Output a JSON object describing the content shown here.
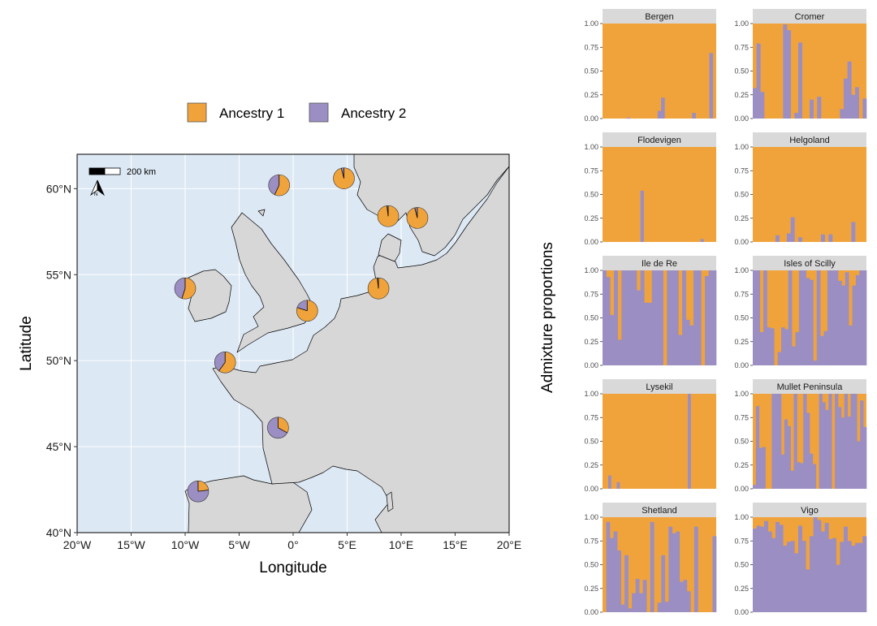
{
  "legend": {
    "items": [
      {
        "label": "Ancestry 1",
        "color": "#F0A33A"
      },
      {
        "label": "Ancestry 2",
        "color": "#9B8EC2"
      }
    ]
  },
  "map": {
    "xlabel": "Longitude",
    "ylabel": "Latitude",
    "scale_label": "200 km",
    "north_label": "N",
    "colors": {
      "sea": "#DCE8F4",
      "land": "#D7D7D7",
      "border": "#000000"
    },
    "xticks": [
      {
        "value": -20,
        "label": "20°W"
      },
      {
        "value": -15,
        "label": "15°W"
      },
      {
        "value": -10,
        "label": "10°W"
      },
      {
        "value": -5,
        "label": "5°W"
      },
      {
        "value": 0,
        "label": "0°"
      },
      {
        "value": 5,
        "label": "5°E"
      },
      {
        "value": 10,
        "label": "10°E"
      },
      {
        "value": 15,
        "label": "15°E"
      },
      {
        "value": 20,
        "label": "20°E"
      }
    ],
    "yticks": [
      {
        "value": 40,
        "label": "40°N"
      },
      {
        "value": 45,
        "label": "45°N"
      },
      {
        "value": 50,
        "label": "50°N"
      },
      {
        "value": 55,
        "label": "55°N"
      },
      {
        "value": 60,
        "label": "60°N"
      }
    ]
  },
  "chart_data": [
    {
      "type": "pie-map",
      "title": "",
      "xlabel": "Longitude",
      "ylabel": "Latitude",
      "xlim": [
        -20,
        20
      ],
      "ylim": [
        40,
        62
      ],
      "series_names": [
        "Ancestry 1",
        "Ancestry 2"
      ],
      "points": [
        {
          "site": "Bergen",
          "lon": 4.7,
          "lat": 60.6,
          "anc1": 0.96,
          "anc2": 0.04
        },
        {
          "site": "Shetland",
          "lon": -1.3,
          "lat": 60.2,
          "anc1": 0.57,
          "anc2": 0.43
        },
        {
          "site": "Flodevigen",
          "lon": 8.8,
          "lat": 58.4,
          "anc1": 0.98,
          "anc2": 0.02
        },
        {
          "site": "Lysekil",
          "lon": 11.5,
          "lat": 58.3,
          "anc1": 0.96,
          "anc2": 0.04
        },
        {
          "site": "Mullet Peninsula",
          "lon": -10.0,
          "lat": 54.2,
          "anc1": 0.55,
          "anc2": 0.45
        },
        {
          "site": "Helgoland",
          "lon": 7.9,
          "lat": 54.2,
          "anc1": 0.98,
          "anc2": 0.02
        },
        {
          "site": "Cromer",
          "lon": 1.3,
          "lat": 52.9,
          "anc1": 0.8,
          "anc2": 0.2
        },
        {
          "site": "Isles of Scilly",
          "lon": -6.3,
          "lat": 49.9,
          "anc1": 0.6,
          "anc2": 0.4
        },
        {
          "site": "Ile de Re",
          "lon": -1.4,
          "lat": 46.1,
          "anc1": 0.33,
          "anc2": 0.67
        },
        {
          "site": "Vigo",
          "lon": -8.8,
          "lat": 42.4,
          "anc1": 0.23,
          "anc2": 0.77
        }
      ]
    },
    {
      "type": "bar",
      "subtype": "stacked-faceted",
      "ylabel": "Admixture proportions",
      "ylim": [
        0,
        1
      ],
      "yticks": [
        "0.00",
        "0.25",
        "0.50",
        "0.75",
        "1.00"
      ],
      "series_names": [
        "Ancestry 2",
        "Ancestry 1"
      ],
      "note": "values are per-individual Ancestry 2 proportions; Ancestry 1 = 1 - value",
      "facets": [
        {
          "name": "Bergen",
          "values": [
            0,
            0,
            0,
            0,
            0,
            0,
            0,
            0.01,
            0,
            0,
            0,
            0,
            0,
            0,
            0,
            0,
            0.08,
            0.22,
            0,
            0,
            0,
            0,
            0,
            0,
            0,
            0,
            0.06,
            0,
            0,
            0,
            0,
            0.69,
            0
          ]
        },
        {
          "name": "Cromer",
          "values": [
            0.32,
            0.79,
            0.28,
            0,
            0,
            0,
            0,
            0,
            0.99,
            0.93,
            0,
            0.06,
            0.8,
            0,
            0,
            0.2,
            0,
            0.23,
            0,
            0,
            0,
            0,
            0,
            0.1,
            0.42,
            0.6,
            0.25,
            0.33,
            0,
            0.21
          ]
        },
        {
          "name": "Flodevigen",
          "values": [
            0,
            0,
            0,
            0,
            0,
            0,
            0,
            0,
            0,
            0,
            0,
            0,
            0.54,
            0,
            0,
            0,
            0,
            0,
            0,
            0,
            0,
            0,
            0,
            0,
            0,
            0,
            0,
            0,
            0,
            0,
            0,
            0.03,
            0,
            0,
            0,
            0
          ]
        },
        {
          "name": "Helgoland",
          "values": [
            0,
            0,
            0,
            0,
            0,
            0,
            0.07,
            0,
            0,
            0.09,
            0.26,
            0,
            0.05,
            0,
            0,
            0,
            0,
            0,
            0.08,
            0,
            0.08,
            0,
            0,
            0,
            0,
            0,
            0.21,
            0,
            0,
            0
          ]
        },
        {
          "name": "Ile de Re",
          "values": [
            1,
            0.93,
            0.53,
            1,
            0.27,
            1,
            1,
            1,
            1,
            0.79,
            1,
            0.66,
            0.66,
            1,
            1,
            1,
            0,
            1,
            1,
            1,
            0.32,
            1,
            0.48,
            0.42,
            1,
            1,
            0,
            0.94,
            1,
            1
          ]
        },
        {
          "name": "Isles of Scilly",
          "values": [
            1,
            1,
            0.35,
            1,
            0.4,
            0.39,
            0,
            0.14,
            0.4,
            0.38,
            1,
            0.2,
            0.35,
            1,
            1,
            0.92,
            0.9,
            0.05,
            1,
            0.31,
            0.36,
            1,
            1,
            1,
            0.89,
            0.84,
            0.98,
            0.42,
            0.84,
            0.95,
            1,
            1
          ]
        },
        {
          "name": "Lysekil",
          "values": [
            0,
            0,
            0.14,
            0,
            0,
            0.07,
            0,
            0,
            0,
            0,
            0,
            0,
            0,
            0,
            0,
            0,
            0,
            0,
            0,
            0,
            0,
            0,
            0,
            0,
            0,
            0,
            0,
            0,
            0,
            0,
            1,
            0,
            0,
            0,
            0,
            0,
            0,
            0,
            0,
            0
          ]
        },
        {
          "name": "Mullet Peninsula",
          "values": [
            0.04,
            0.87,
            0.43,
            0.44,
            0,
            0,
            1,
            1,
            1,
            0.36,
            0.73,
            0.66,
            0.19,
            1,
            0.28,
            0.27,
            1,
            0.8,
            0.37,
            0.26,
            0,
            1,
            0.91,
            0.83,
            1,
            0,
            1,
            0.86,
            0.75,
            1,
            0.76,
            1,
            1,
            0.5,
            0.93,
            0.65
          ]
        },
        {
          "name": "Shetland",
          "values": [
            0,
            0.95,
            0.78,
            0.85,
            0.65,
            0.08,
            0.6,
            0.04,
            0.2,
            0.35,
            0.2,
            0.34,
            0,
            0.95,
            0,
            0.1,
            0.6,
            0.11,
            0.9,
            0.83,
            0.85,
            0.32,
            0.34,
            0.22,
            0,
            0.9,
            0,
            0,
            0,
            0,
            0.8
          ]
        },
        {
          "name": "Vigo",
          "values": [
            0.88,
            0.91,
            0.9,
            0.96,
            0.85,
            0.78,
            0.95,
            0.92,
            0.7,
            0.74,
            0.75,
            0.62,
            0.91,
            0.75,
            0.45,
            0.8,
            1,
            0.97,
            0.85,
            0.94,
            0.77,
            0.78,
            0.5,
            0.74,
            0.9,
            0.75,
            0.7,
            0.73,
            0.73,
            0.8
          ]
        }
      ]
    }
  ]
}
